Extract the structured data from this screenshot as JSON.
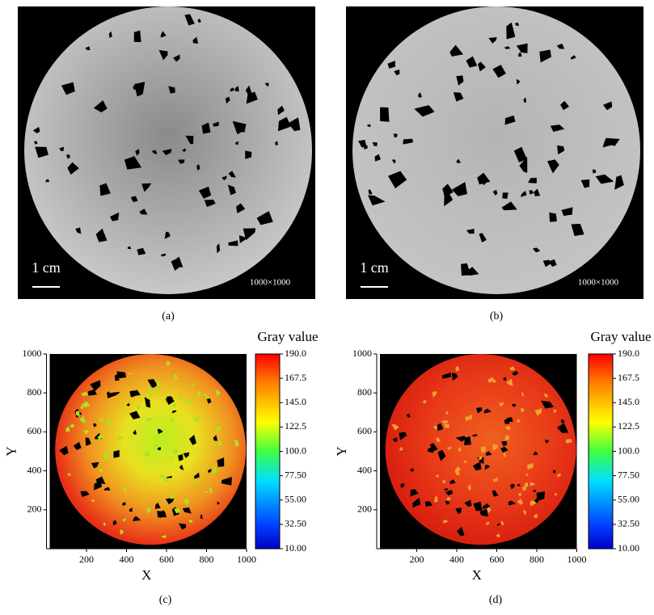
{
  "panels": [
    {
      "label": "(a)",
      "scale_bar": "1 cm",
      "resolution": "1000×1000"
    },
    {
      "label": "(b)",
      "scale_bar": "1 cm",
      "resolution": "1000×1000"
    },
    {
      "label": "(c)",
      "x_label": "X",
      "y_label": "Y",
      "xlim": [
        0,
        1000
      ],
      "ylim": [
        0,
        1000
      ],
      "xticks": [
        200,
        400,
        600,
        800,
        1000
      ],
      "yticks": [
        200,
        400,
        600,
        800,
        1000
      ],
      "colorbar": {
        "title": "Gray value",
        "range": [
          10,
          190
        ],
        "ticks": [
          {
            "value": 190,
            "label": "190.0"
          },
          {
            "value": 167.5,
            "label": "167.5"
          },
          {
            "value": 145,
            "label": "145.0"
          },
          {
            "value": 122.5,
            "label": "122.5"
          },
          {
            "value": 100,
            "label": "100.0"
          },
          {
            "value": 77.5,
            "label": "77.50"
          },
          {
            "value": 55,
            "label": "55.00"
          },
          {
            "value": 32.5,
            "label": "32.50"
          },
          {
            "value": 10,
            "label": "10.00"
          }
        ]
      }
    },
    {
      "label": "(d)",
      "x_label": "X",
      "y_label": "Y",
      "xlim": [
        0,
        1000
      ],
      "ylim": [
        0,
        1000
      ],
      "xticks": [
        200,
        400,
        600,
        800,
        1000
      ],
      "yticks": [
        200,
        400,
        600,
        800,
        1000
      ],
      "colorbar": {
        "title": "Gray value",
        "range": [
          10,
          190
        ],
        "ticks": [
          {
            "value": 190,
            "label": "190.0"
          },
          {
            "value": 167.5,
            "label": "167.5"
          },
          {
            "value": 145,
            "label": "145.0"
          },
          {
            "value": 122.5,
            "label": "122.5"
          },
          {
            "value": 100,
            "label": "100.0"
          },
          {
            "value": 77.5,
            "label": "77.50"
          },
          {
            "value": 55,
            "label": "55.00"
          },
          {
            "value": 32.5,
            "label": "32.50"
          },
          {
            "value": 10,
            "label": "10.00"
          }
        ]
      }
    }
  ]
}
